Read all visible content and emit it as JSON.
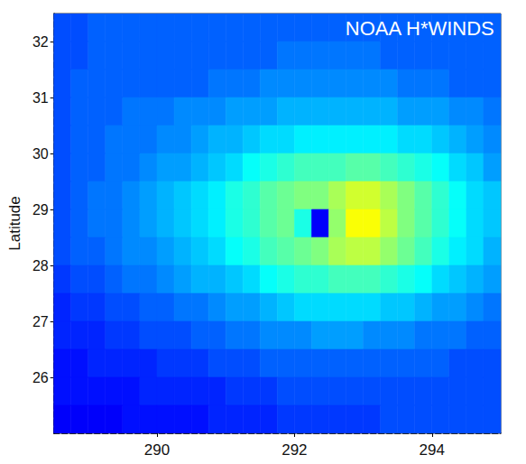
{
  "chart_data": {
    "type": "heatmap",
    "annotation": "NOAA H*WINDS",
    "ylabel": "Latitude",
    "color": "jet",
    "grid": false,
    "xlim": [
      288.5,
      295
    ],
    "xticks": [
      290,
      292,
      294
    ],
    "ylim": [
      25,
      32.5
    ],
    "yticks": [
      26,
      27,
      28,
      29,
      30,
      31,
      32
    ],
    "zlim": [
      0,
      50
    ],
    "x": [
      288.625,
      288.875,
      289.125,
      289.375,
      289.625,
      289.875,
      290.125,
      290.375,
      290.625,
      290.875,
      291.125,
      291.375,
      291.625,
      291.875,
      292.125,
      292.375,
      292.625,
      292.875,
      293.125,
      293.375,
      293.625,
      293.875,
      294.125,
      294.375,
      294.625,
      294.875
    ],
    "y": [
      32.25,
      31.75,
      31.25,
      30.75,
      30.25,
      29.75,
      29.25,
      28.75,
      28.25,
      27.75,
      27.25,
      26.75,
      26.25,
      25.75,
      25.25
    ],
    "cells": [
      [
        10,
        10,
        11,
        11,
        11,
        11,
        11,
        11,
        11,
        11,
        11,
        11,
        11,
        11,
        11,
        11,
        11,
        11,
        11,
        11,
        11,
        11,
        11,
        11,
        11,
        11
      ],
      [
        10,
        10,
        11,
        11,
        11,
        11,
        11,
        11,
        11,
        11,
        11,
        11,
        11,
        12,
        12,
        12,
        12,
        12,
        12,
        11,
        11,
        11,
        11,
        11,
        11,
        11
      ],
      [
        10,
        11,
        11,
        11,
        11,
        11,
        11,
        11,
        11,
        12,
        12,
        12,
        13,
        13,
        13,
        13,
        13,
        13,
        13,
        13,
        12,
        12,
        12,
        11,
        11,
        11
      ],
      [
        10,
        11,
        11,
        11,
        12,
        12,
        12,
        13,
        13,
        13,
        14,
        14,
        14,
        15,
        15,
        15,
        15,
        15,
        15,
        15,
        14,
        14,
        14,
        13,
        13,
        12
      ],
      [
        10,
        11,
        11,
        12,
        12,
        12,
        13,
        13,
        14,
        15,
        15,
        16,
        17,
        17,
        18,
        18,
        18,
        18,
        18,
        18,
        17,
        17,
        16,
        15,
        14,
        13
      ],
      [
        10,
        11,
        11,
        12,
        12,
        13,
        14,
        14,
        15,
        16,
        17,
        19,
        20,
        21,
        22,
        22,
        22,
        23,
        23,
        22,
        21,
        20,
        19,
        17,
        16,
        14
      ],
      [
        10,
        11,
        12,
        12,
        13,
        14,
        15,
        16,
        17,
        18,
        20,
        21,
        23,
        24,
        25,
        25,
        27,
        29,
        29,
        27,
        25,
        23,
        21,
        19,
        17,
        16
      ],
      [
        10,
        11,
        12,
        12,
        13,
        14,
        15,
        16,
        17,
        18,
        20,
        21,
        23,
        24,
        20,
        6,
        26,
        31,
        31,
        28,
        25,
        23,
        21,
        19,
        17,
        16
      ],
      [
        10,
        11,
        11,
        12,
        13,
        13,
        14,
        15,
        16,
        17,
        19,
        20,
        22,
        23,
        24,
        25,
        27,
        28,
        28,
        26,
        24,
        22,
        20,
        18,
        17,
        15
      ],
      [
        9,
        10,
        10,
        11,
        12,
        12,
        13,
        14,
        15,
        15,
        16,
        17,
        19,
        20,
        21,
        21,
        22,
        22,
        22,
        21,
        20,
        19,
        17,
        16,
        15,
        14
      ],
      [
        8,
        9,
        9,
        10,
        10,
        11,
        11,
        12,
        12,
        13,
        14,
        14,
        15,
        16,
        17,
        17,
        17,
        17,
        17,
        16,
        16,
        15,
        14,
        14,
        13,
        12
      ],
      [
        8,
        8,
        8,
        9,
        9,
        10,
        10,
        10,
        11,
        11,
        12,
        12,
        13,
        13,
        13,
        14,
        14,
        14,
        13,
        13,
        13,
        12,
        12,
        12,
        11,
        11
      ],
      [
        7,
        7,
        8,
        8,
        8,
        8,
        9,
        9,
        9,
        10,
        10,
        10,
        11,
        11,
        11,
        11,
        11,
        11,
        11,
        11,
        11,
        11,
        11,
        10,
        10,
        10
      ],
      [
        7,
        7,
        7,
        7,
        7,
        8,
        8,
        8,
        8,
        8,
        9,
        9,
        9,
        10,
        10,
        10,
        10,
        10,
        10,
        10,
        10,
        10,
        10,
        10,
        10,
        10
      ],
      [
        6,
        6,
        6,
        6,
        7,
        7,
        7,
        7,
        7,
        8,
        8,
        8,
        8,
        9,
        9,
        9,
        9,
        9,
        9,
        10,
        10,
        10,
        10,
        10,
        10,
        10
      ]
    ]
  }
}
